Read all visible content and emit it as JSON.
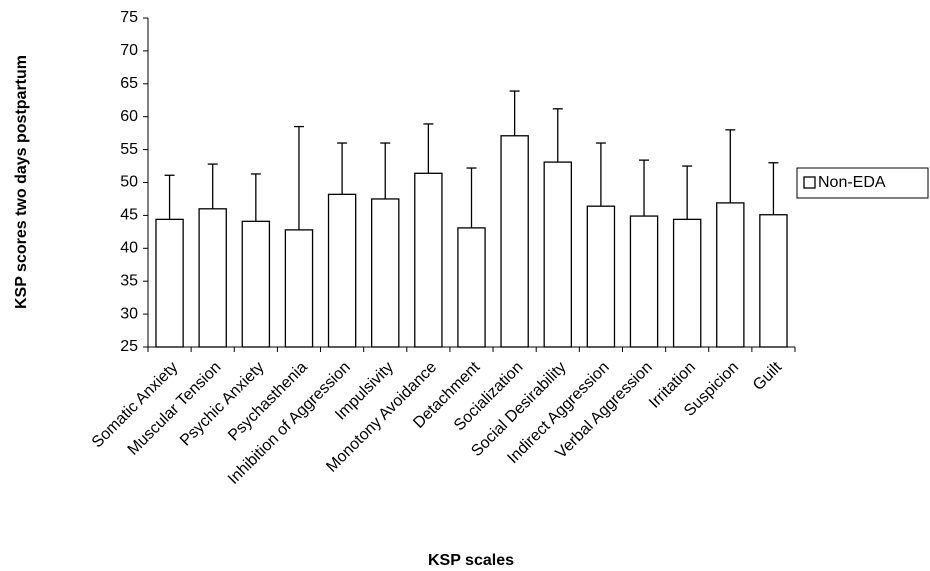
{
  "chart_data": {
    "type": "bar",
    "y_label": "KSP scores two days postpartum",
    "x_label": "KSP scales",
    "categories": [
      "Somatic Anxiety",
      "Muscular Tension",
      "Psychic Anxiety",
      "Psychasthenia",
      "Inhibition of Aggression",
      "Impulsivity",
      "Monotony Avoidance",
      "Detachment",
      "Socialization",
      "Social Desirability",
      "Indirect Aggression",
      "Verbal Aggression",
      "Irritation",
      "Suspicion",
      "Guilt"
    ],
    "series": [
      {
        "name": "Non-EDA",
        "color": "#ffffff",
        "values": [
          44.4,
          46.0,
          44.1,
          42.8,
          48.2,
          47.5,
          51.4,
          43.1,
          57.1,
          53.1,
          46.4,
          44.9,
          44.4,
          46.9,
          45.1
        ],
        "errors": [
          6.7,
          6.8,
          7.2,
          15.7,
          7.8,
          8.5,
          7.5,
          9.1,
          6.8,
          8.1,
          9.6,
          8.5,
          8.1,
          11.1,
          7.9
        ]
      }
    ],
    "ylim": [
      25,
      75
    ],
    "yticks": [
      25,
      30,
      35,
      40,
      45,
      50,
      55,
      60,
      65,
      70,
      75
    ],
    "legend": "right"
  }
}
